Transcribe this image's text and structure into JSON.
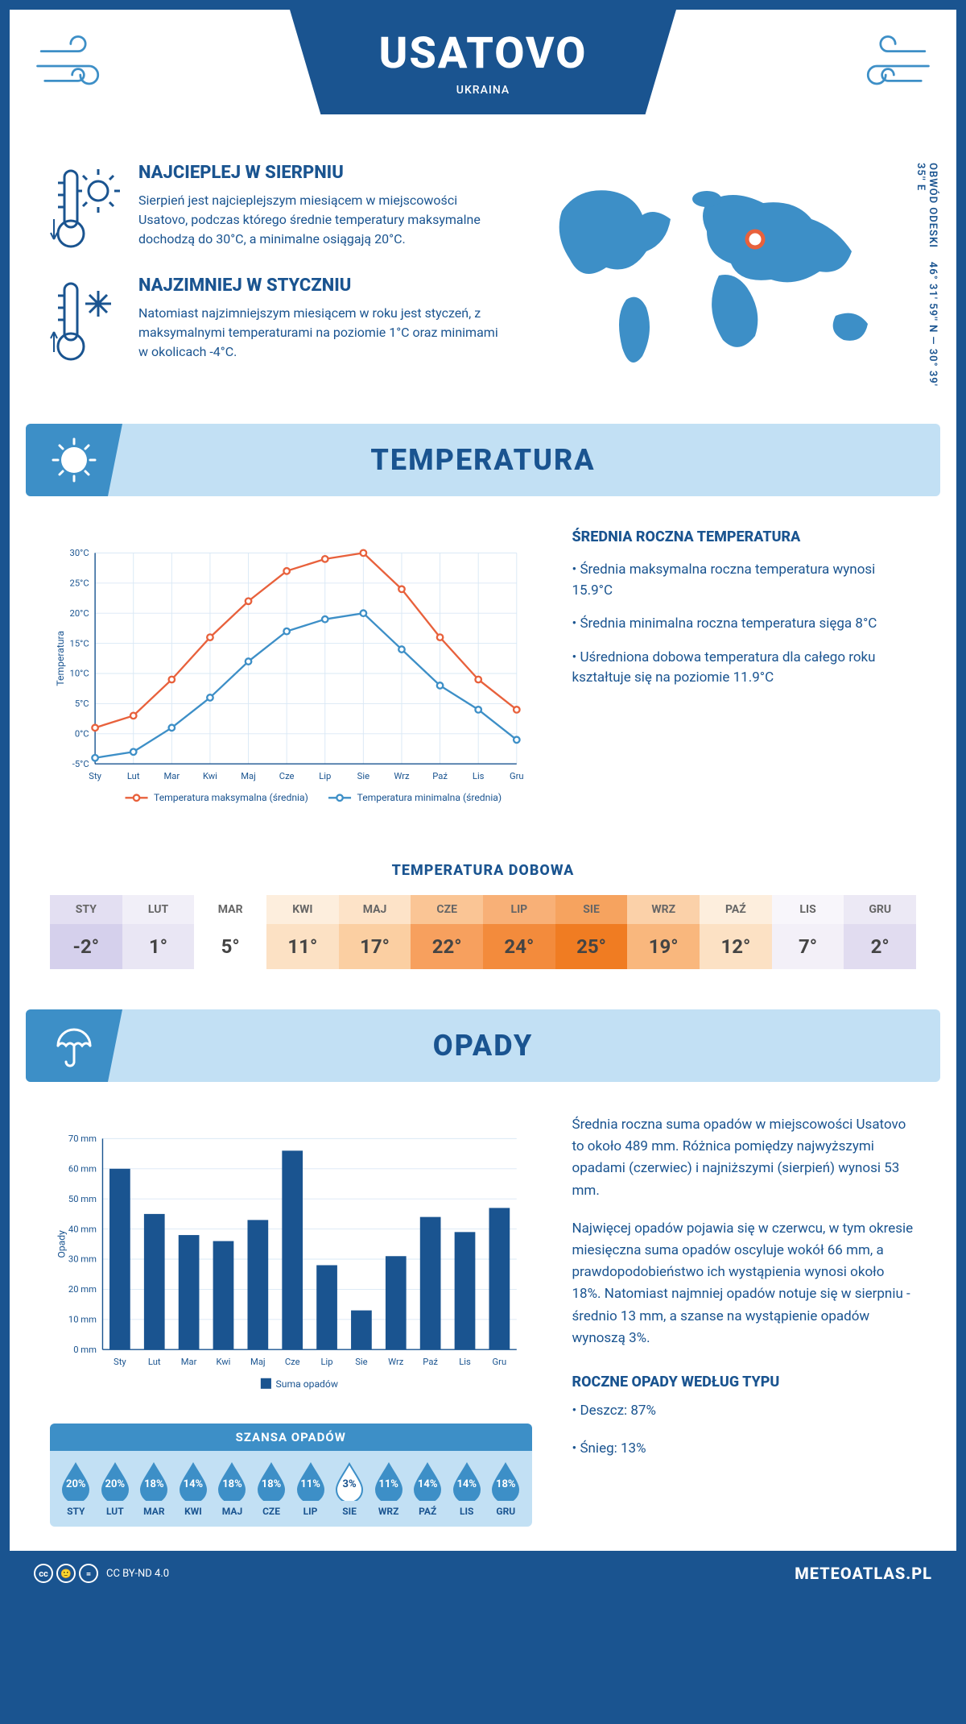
{
  "header": {
    "city": "USATOVO",
    "country": "UKRAINA"
  },
  "coords": {
    "text": "46° 31' 59'' N — 30° 39' 35'' E",
    "region": "OBWÓD ODESKI"
  },
  "intro": {
    "hot": {
      "title": "NAJCIEPLEJ W SIERPNIU",
      "body": "Sierpień jest najcieplejszym miesiącem w miejscowości Usatovo, podczas którego średnie temperatury maksymalne dochodzą do 30°C, a minimalne osiągają 20°C."
    },
    "cold": {
      "title": "NAJZIMNIEJ W STYCZNIU",
      "body": "Natomiast najzimniejszym miesiącem w roku jest styczeń, z maksymalnymi temperaturami na poziomie 1°C oraz minimami w okolicach -4°C."
    }
  },
  "brand_color": "#1a5490",
  "accent_color": "#3d8fc7",
  "light_color": "#c2e0f4",
  "months_short": [
    "Sty",
    "Lut",
    "Mar",
    "Kwi",
    "Maj",
    "Cze",
    "Lip",
    "Sie",
    "Wrz",
    "Paź",
    "Lis",
    "Gru"
  ],
  "months_upper": [
    "STY",
    "LUT",
    "MAR",
    "KWI",
    "MAJ",
    "CZE",
    "LIP",
    "SIE",
    "WRZ",
    "PAŹ",
    "LIS",
    "GRU"
  ],
  "temperature": {
    "section_title": "TEMPERATURA",
    "ylabel": "Temperatura",
    "ymin": -5,
    "ymax": 30,
    "ystep": 5,
    "y_suffix": "°C",
    "max_series": {
      "label": "Temperatura maksymalna (średnia)",
      "color": "#e8613c",
      "values": [
        1,
        3,
        9,
        16,
        22,
        27,
        29,
        30,
        24,
        16,
        9,
        4
      ]
    },
    "min_series": {
      "label": "Temperatura minimalna (średnia)",
      "color": "#3d8fc7",
      "values": [
        -4,
        -3,
        1,
        6,
        12,
        17,
        19,
        20,
        14,
        8,
        4,
        -1
      ]
    },
    "info_title": "ŚREDNIA ROCZNA TEMPERATURA",
    "bullets": [
      "Średnia maksymalna roczna temperatura wynosi 15.9°C",
      "Średnia minimalna roczna temperatura sięga 8°C",
      "Uśredniona dobowa temperatura dla całego roku kształtuje się na poziomie 11.9°C"
    ]
  },
  "daily": {
    "title": "TEMPERATURA DOBOWA",
    "values": [
      -2,
      1,
      5,
      11,
      17,
      22,
      24,
      25,
      19,
      12,
      7,
      2
    ],
    "suffix": "°",
    "bg_colors": [
      "#d5d0ec",
      "#e9e6f4",
      "#ffffff",
      "#fce1c4",
      "#fbcfa2",
      "#f7a05e",
      "#f38b3c",
      "#f07c22",
      "#f9b77d",
      "#fce1c4",
      "#f3f0f8",
      "#e1dcf0"
    ],
    "header_colors": [
      "#e3dff2",
      "#f1eff8",
      "#ffffff",
      "#fdeedd",
      "#fde3c8",
      "#fac595",
      "#f8b077",
      "#f6a35f",
      "#fbd1a9",
      "#fdeedd",
      "#f8f6fb",
      "#ece9f5"
    ]
  },
  "precip": {
    "section_title": "OPADY",
    "ylabel": "Opady",
    "ymin": 0,
    "ymax": 70,
    "ystep": 10,
    "y_suffix": " mm",
    "bar_color": "#1a5490",
    "series_label": "Suma opadów",
    "values": [
      60,
      45,
      38,
      36,
      43,
      66,
      28,
      13,
      31,
      44,
      39,
      47
    ],
    "para1": "Średnia roczna suma opadów w miejscowości Usatovo to około 489 mm. Różnica pomiędzy najwyższymi opadami (czerwiec) i najniższymi (sierpień) wynosi 53 mm.",
    "para2": "Najwięcej opadów pojawia się w czerwcu, w tym okresie miesięczna suma opadów oscyluje wokół 66 mm, a prawdopodobieństwo ich wystąpienia wynosi około 18%. Natomiast najmniej opadów notuje się w sierpniu - średnio 13 mm, a szanse na wystąpienie opadów wynoszą 3%.",
    "type_title": "ROCZNE OPADY WEDŁUG TYPU",
    "type_bullets": [
      "Deszcz: 87%",
      "Śnieg: 13%"
    ]
  },
  "chance": {
    "title": "SZANSA OPADÓW",
    "values": [
      20,
      20,
      18,
      14,
      18,
      18,
      11,
      3,
      11,
      14,
      14,
      18
    ],
    "min_index": 7,
    "fill_color": "#3d8fc7",
    "empty_color": "#ffffff"
  },
  "footer": {
    "license": "CC BY-ND 4.0",
    "site": "METEOATLAS.PL"
  }
}
